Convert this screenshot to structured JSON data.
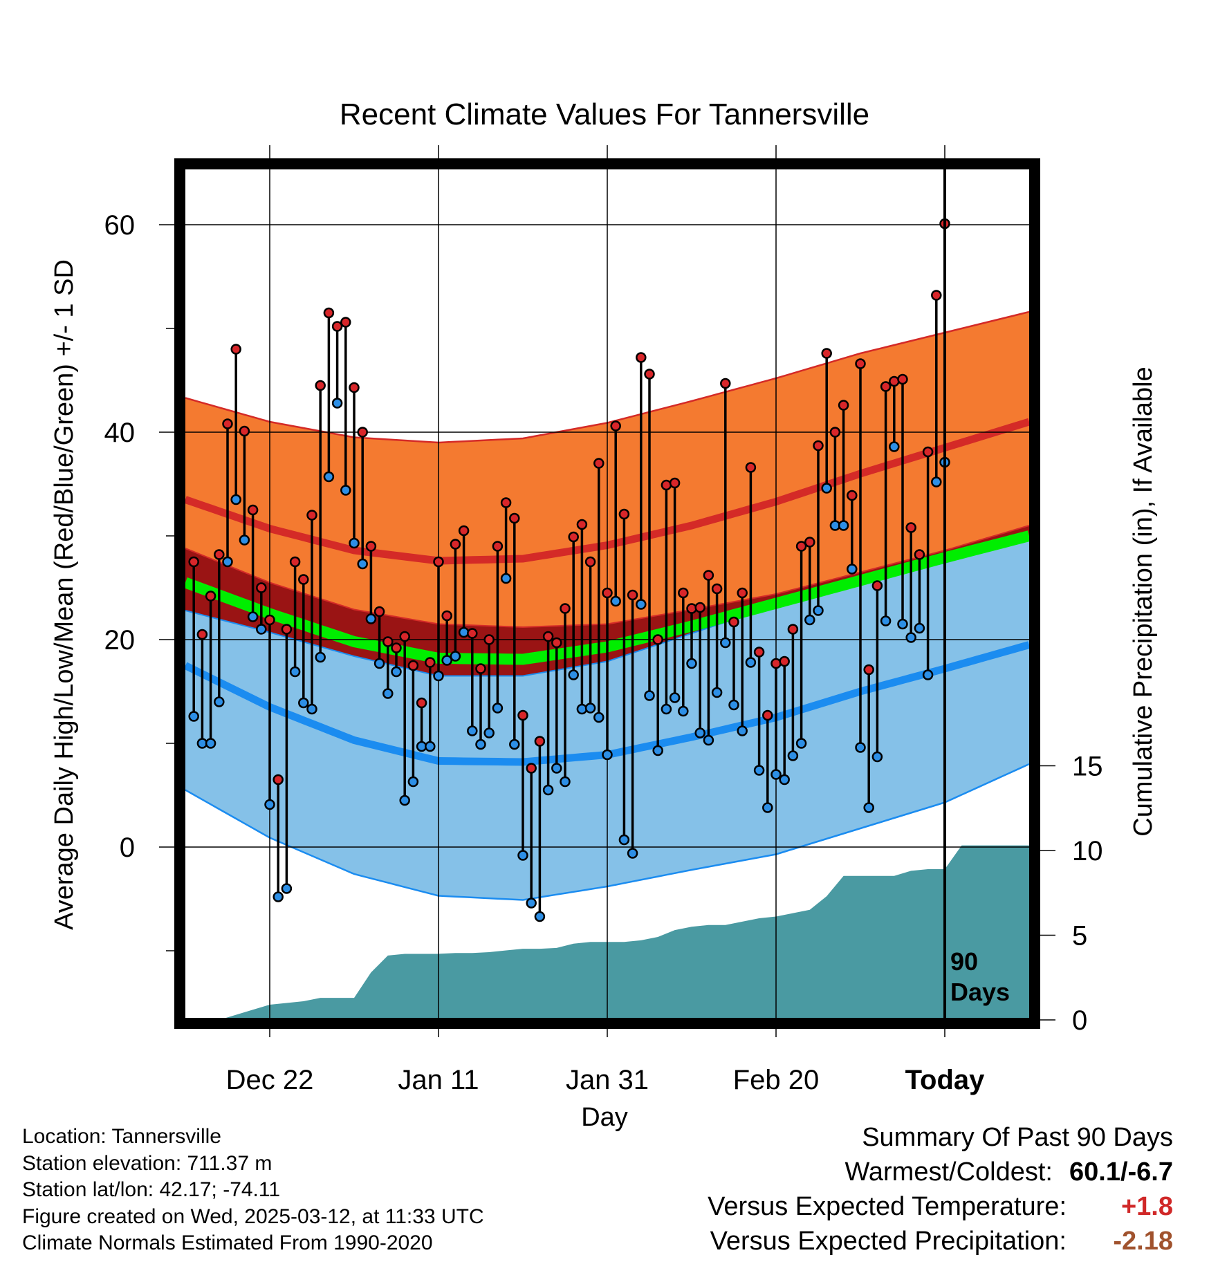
{
  "chart_data": {
    "type": "line",
    "title": "Recent Climate Values For Tannersville",
    "xlabel": "Day",
    "ylabel_left": "Average Daily High/Low/Mean (Red/Blue/Green) +/- 1 SD",
    "ylabel_right": "Cumulative Precipitation (in), If Available",
    "x_tick_labels": [
      "Dec 22",
      "Jan 11",
      "Jan 31",
      "Feb 20",
      "Today"
    ],
    "y_left_tick_labels": [
      "0",
      "20",
      "40",
      "60"
    ],
    "y_right_tick_labels": [
      "0",
      "5",
      "10",
      "15"
    ],
    "ylim_left": [
      -16,
      66
    ],
    "ylim_right": [
      0,
      50
    ],
    "today_label": "90 Days",
    "grid": true,
    "colors": {
      "high_band": "#f47a30",
      "high_line": "#d42a27",
      "low_band": "#85c1e8",
      "low_line": "#1b8cf0",
      "overlap_band": "#9a1414",
      "mean_line": "#00ee00",
      "precip": "#4a9aa2",
      "high_marker": "#d8262a",
      "low_marker": "#2d8fe6"
    },
    "normals": {
      "day": [
        0,
        10,
        20,
        30,
        40,
        50,
        60,
        70,
        80,
        90,
        100
      ],
      "high_mean": [
        33.5,
        30.7,
        28.6,
        27.6,
        27.8,
        29.1,
        31.0,
        33.3,
        36.0,
        38.5,
        41.0
      ],
      "high_sd_upper": [
        43.3,
        41.0,
        39.5,
        39.0,
        39.4,
        40.9,
        43.0,
        45.2,
        47.6,
        49.6,
        51.6
      ],
      "high_sd_lower": [
        28.8,
        25.5,
        22.9,
        21.5,
        21.2,
        21.5,
        22.9,
        24.4,
        26.5,
        28.6,
        31.0
      ],
      "low_mean": [
        17.5,
        13.5,
        10.3,
        8.3,
        8.2,
        8.9,
        10.6,
        12.5,
        15.0,
        17.2,
        19.5
      ],
      "low_sd_upper": [
        22.8,
        20.7,
        18.4,
        16.5,
        16.5,
        17.9,
        20.6,
        23.3,
        25.5,
        27.4,
        29.7
      ],
      "low_sd_lower": [
        5.5,
        0.9,
        -2.6,
        -4.7,
        -5.1,
        -3.8,
        -2.2,
        -0.7,
        1.8,
        4.3,
        8.0
      ],
      "mean": [
        25.5,
        22.5,
        19.8,
        18.2,
        18.1,
        19.3,
        21.3,
        23.5,
        25.7,
        27.9,
        30.0
      ]
    },
    "observations": {
      "high": [
        27.5,
        20.5,
        24.2,
        28.2,
        40.8,
        48.0,
        40.1,
        32.5,
        25.0,
        21.9,
        6.5,
        21.0,
        27.5,
        25.8,
        32.0,
        44.5,
        51.5,
        50.2,
        50.6,
        44.3,
        40.0,
        29.0,
        22.7,
        19.8,
        19.2,
        20.3,
        17.5,
        13.9,
        17.8,
        27.5,
        22.3,
        29.2,
        30.5,
        20.6,
        17.2,
        20.0,
        29.0,
        33.2,
        31.7,
        12.7,
        7.6,
        10.2,
        20.3,
        19.7,
        23.0,
        29.9,
        31.1,
        27.5,
        37.0,
        24.5,
        40.6,
        32.1,
        24.3,
        47.2,
        45.6,
        20.0,
        34.9,
        35.1,
        24.5,
        23.0,
        23.1,
        26.2,
        24.9,
        44.7,
        21.7,
        24.5,
        36.6,
        18.8,
        12.7,
        17.7,
        17.9,
        21.0,
        29.0,
        29.4,
        38.7,
        47.6,
        40.0,
        42.6,
        33.9,
        46.6,
        17.1,
        25.2,
        44.4,
        44.9,
        45.1,
        30.8,
        28.2,
        38.1,
        53.2,
        60.1
      ],
      "low": [
        12.6,
        10.0,
        10.0,
        14.0,
        27.5,
        33.5,
        29.6,
        22.2,
        21.0,
        4.1,
        -4.8,
        -4.0,
        16.9,
        13.9,
        13.3,
        18.3,
        35.7,
        42.8,
        34.4,
        29.3,
        27.3,
        22.0,
        17.7,
        14.8,
        16.9,
        4.5,
        6.3,
        9.7,
        9.7,
        16.5,
        18.0,
        18.4,
        20.7,
        11.2,
        9.9,
        11.0,
        13.4,
        25.9,
        9.9,
        -0.8,
        -5.4,
        -6.7,
        5.5,
        7.6,
        6.3,
        16.6,
        13.3,
        13.4,
        12.5,
        8.9,
        23.7,
        0.7,
        -0.6,
        23.4,
        14.6,
        9.3,
        13.3,
        14.4,
        13.1,
        17.7,
        11.0,
        10.3,
        14.9,
        19.7,
        13.7,
        11.2,
        17.8,
        7.4,
        3.8,
        7.0,
        6.5,
        8.8,
        10.0,
        21.9,
        22.8,
        34.6,
        31.0,
        31.0,
        26.8,
        9.6,
        3.8,
        8.7,
        21.8,
        38.6,
        21.5,
        20.2,
        21.1,
        16.6,
        35.2,
        37.1
      ]
    },
    "precipitation": {
      "day": [
        4,
        6,
        8,
        10,
        12,
        14,
        16,
        18,
        20,
        22,
        24,
        26,
        28,
        30,
        32,
        34,
        36,
        38,
        40,
        42,
        44,
        46,
        48,
        50,
        52,
        54,
        56,
        58,
        60,
        62,
        64,
        66,
        68,
        70,
        72,
        74,
        76,
        78,
        80,
        82,
        84,
        86,
        88,
        90,
        92,
        94,
        96,
        98,
        100
      ],
      "total": [
        0,
        0.3,
        0.6,
        0.9,
        1.0,
        1.1,
        1.3,
        1.3,
        1.3,
        2.8,
        3.8,
        3.9,
        3.9,
        3.9,
        3.95,
        3.95,
        4.0,
        4.1,
        4.2,
        4.2,
        4.25,
        4.5,
        4.6,
        4.6,
        4.6,
        4.7,
        4.9,
        5.3,
        5.5,
        5.6,
        5.6,
        5.8,
        6.0,
        6.1,
        6.3,
        6.5,
        7.3,
        8.5,
        8.5,
        8.5,
        8.5,
        8.8,
        8.9,
        8.9,
        10.3,
        10.3,
        10.3,
        10.3,
        10.3
      ]
    }
  },
  "info": {
    "location": "Location: Tannersville",
    "elevation": "Station elevation: 711.37 m",
    "latlon": "Station lat/lon: 42.17; -74.11",
    "created": "Figure created on Wed, 2025-03-12, at 11:33 UTC",
    "normals": "Climate Normals Estimated From 1990-2020"
  },
  "summary": {
    "heading": "Summary Of Past 90 Days",
    "warmest_coldest_label": "Warmest/Coldest:",
    "warmest_coldest_value": "60.1/-6.7",
    "temp_label": "Versus Expected Temperature:",
    "temp_value": "+1.8",
    "temp_color": "#d02828",
    "precip_label": "Versus Expected Precipitation:",
    "precip_value": "-2.18",
    "precip_color": "#a0522d"
  }
}
